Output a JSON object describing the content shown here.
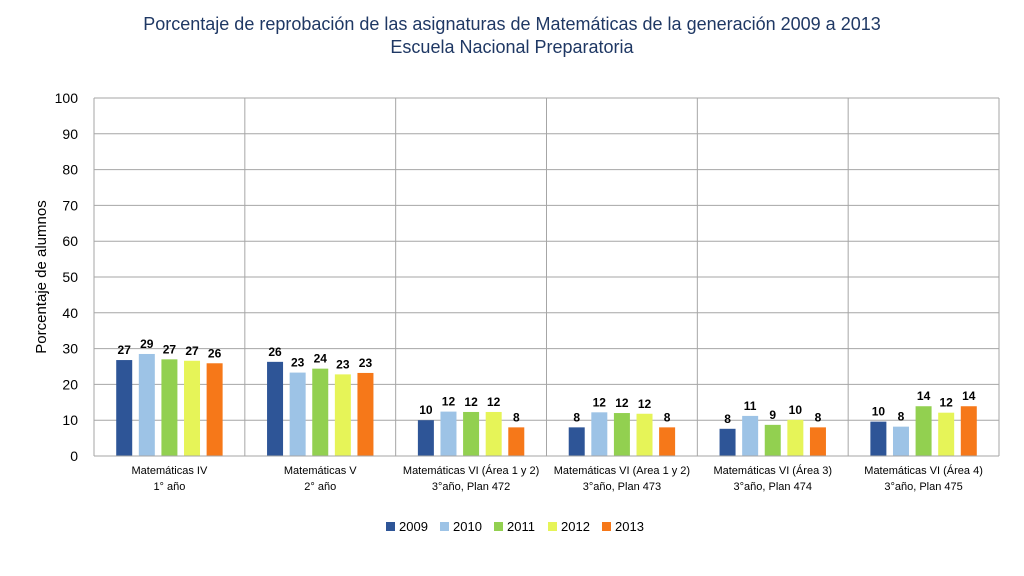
{
  "chart_data": {
    "type": "bar",
    "title": "Porcentaje de reprobación de las asignaturas de Matemáticas de la generación 2009 a 2013",
    "subtitle": "Escuela Nacional Preparatoria",
    "ylabel": "Porcentaje  de alumnos",
    "xlabel": "",
    "ylim": [
      0,
      100
    ],
    "yticks": [
      0,
      10,
      20,
      30,
      40,
      50,
      60,
      70,
      80,
      90,
      100
    ],
    "grid": true,
    "legend_position": "bottom",
    "categories": [
      [
        "Matemáticas IV",
        "1° año"
      ],
      [
        "Matemáticas V",
        "2° año"
      ],
      [
        "Matemáticas VI (Área 1 y 2)",
        "3°año, Plan 472"
      ],
      [
        "Matemáticas VI (Area 1 y 2)",
        "3°año, Plan 473"
      ],
      [
        "Matemáticas VI (Área 3)",
        "3°año, Plan 474"
      ],
      [
        "Matemáticas VI (Área 4)",
        "3°año, Plan 475"
      ]
    ],
    "series": [
      {
        "name": "2009",
        "color": "#2e5597",
        "values": [
          27,
          26,
          10,
          8,
          8,
          10
        ],
        "plot_values": [
          26.8,
          26.3,
          10.0,
          8.0,
          7.6,
          9.6
        ]
      },
      {
        "name": "2010",
        "color": "#9dc3e6",
        "values": [
          29,
          23,
          12,
          12,
          11,
          8
        ],
        "plot_values": [
          28.5,
          23.3,
          12.4,
          12.2,
          11.2,
          8.2
        ]
      },
      {
        "name": "2011",
        "color": "#92d050",
        "values": [
          27,
          24,
          12,
          12,
          9,
          14
        ],
        "plot_values": [
          27.0,
          24.4,
          12.3,
          12.0,
          8.7,
          13.9
        ]
      },
      {
        "name": "2012",
        "color": "#e6f458",
        "values": [
          27,
          23,
          12,
          12,
          10,
          12
        ],
        "plot_values": [
          26.6,
          22.8,
          12.3,
          11.8,
          10.1,
          12.1
        ]
      },
      {
        "name": "2013",
        "color": "#f67819",
        "values": [
          26,
          23,
          8,
          8,
          8,
          14
        ],
        "plot_values": [
          25.9,
          23.2,
          8.0,
          8.0,
          8.0,
          13.9
        ]
      }
    ]
  }
}
